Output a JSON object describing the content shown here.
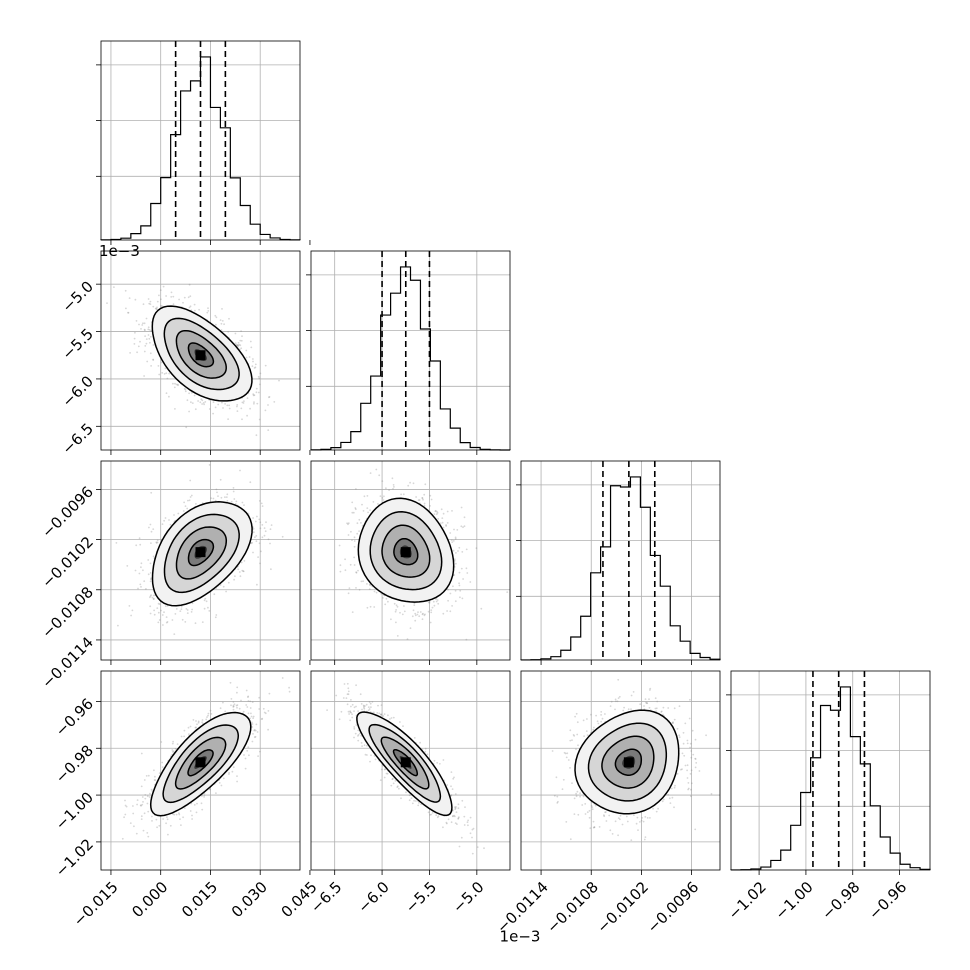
{
  "chart_data": {
    "type": "corner",
    "title": "",
    "grid": true,
    "colors": {
      "ink": "#000000",
      "grid": "#b0b0b0",
      "scatter": "#8c8c8c"
    },
    "parameters": [
      {
        "range": [
          -0.018,
          0.042
        ],
        "ticks": [
          -0.015,
          0.0,
          0.015,
          0.03,
          0.045
        ],
        "tick_labels": [
          "−0.015",
          "0.000",
          "0.015",
          "0.030",
          "0.045"
        ],
        "offset_label": "",
        "mean": 0.012,
        "sd": 0.0075,
        "quantiles": [
          0.0045,
          0.012,
          0.0195
        ]
      },
      {
        "range": [
          -6.75,
          -4.65
        ],
        "ticks": [
          -6.5,
          -6.0,
          -5.5,
          -5.0
        ],
        "tick_labels": [
          "−6.5",
          "−6.0",
          "−5.5",
          "−5.0"
        ],
        "offset_label": "1e−3",
        "mean": -5.75,
        "sd": 0.25,
        "quantiles": [
          -6.0,
          -5.75,
          -5.5
        ]
      },
      {
        "range": [
          -0.01164,
          -0.00926
        ],
        "ticks": [
          -0.0114,
          -0.0108,
          -0.0102,
          -0.0096
        ],
        "tick_labels": [
          "−0.0114",
          "−0.0108",
          "−0.0102",
          "−0.0096"
        ],
        "offset_label": "",
        "mean": -0.01035,
        "sd": 0.00031,
        "quantiles": [
          -0.01066,
          -0.01035,
          -0.01004
        ]
      },
      {
        "range": [
          -1.032,
          -0.947
        ],
        "ticks": [
          -1.02,
          -1.0,
          -0.98,
          -0.96
        ],
        "tick_labels": [
          "−1.02",
          "−1.00",
          "−0.98",
          "−0.96"
        ],
        "offset_label": "",
        "mean": -0.986,
        "sd": 0.011,
        "quantiles": [
          -0.997,
          -0.986,
          -0.975
        ]
      }
    ],
    "correlations": [
      {
        "x": 0,
        "y": 1,
        "rho": -0.55
      },
      {
        "x": 0,
        "y": 2,
        "rho": 0.45
      },
      {
        "x": 1,
        "y": 2,
        "rho": -0.15
      },
      {
        "x": 0,
        "y": 3,
        "rho": 0.75
      },
      {
        "x": 1,
        "y": 3,
        "rho": -0.85
      },
      {
        "x": 2,
        "y": 3,
        "rho": 0.15
      }
    ],
    "contour_levels_sigma": [
      0.5,
      1.0,
      1.5,
      2.0
    ],
    "hist_bins": 20,
    "scatter_points_per_panel": 1500
  }
}
